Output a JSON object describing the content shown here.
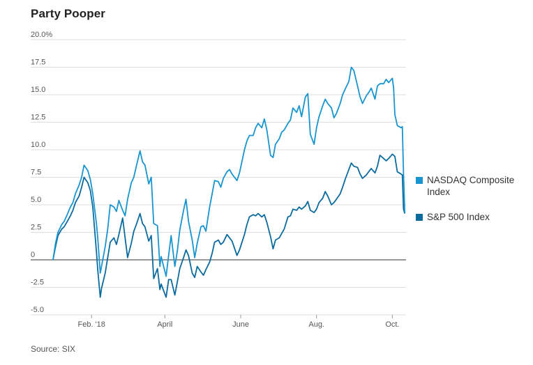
{
  "title": "Party Pooper",
  "source": "Source: SIX",
  "colors": {
    "nasdaq": "#1894cf",
    "sp500": "#0b6a9e",
    "grid": "#dddddd",
    "zero_line": "#333333"
  },
  "legend": [
    {
      "label": "NASDAQ Composite Index",
      "series": "nasdaq"
    },
    {
      "label": "S&P 500 Index",
      "series": "sp500"
    }
  ],
  "chart_data": {
    "type": "line",
    "title": "Party Pooper",
    "xlabel": "",
    "ylabel": "",
    "ylim": [
      -5,
      20
    ],
    "yticks": [
      -5,
      -2.5,
      0,
      2.5,
      5,
      7.5,
      10,
      12.5,
      15,
      17.5,
      20
    ],
    "ytick_labels": [
      "-5.0",
      "-2.5",
      "0",
      "2.5",
      "5.0",
      "7.5",
      "10.0",
      "12.5",
      "15.0",
      "17.5",
      "20.0%"
    ],
    "xlim": [
      "2018-01-01",
      "2018-10-12"
    ],
    "xticks": [
      {
        "label": "Feb. '18",
        "date": "2018-02-01"
      },
      {
        "label": "April",
        "date": "2018-04-01"
      },
      {
        "label": "June",
        "date": "2018-06-01"
      },
      {
        "label": "Aug.",
        "date": "2018-08-01"
      },
      {
        "label": "Oct.",
        "date": "2018-10-01"
      }
    ],
    "grid": true,
    "legend_position": "right",
    "series": [
      {
        "name": "NASDAQ Composite Index",
        "key": "nasdaq",
        "points": [
          [
            "2018-01-01",
            0
          ],
          [
            "2018-01-03",
            1.5
          ],
          [
            "2018-01-05",
            2.5
          ],
          [
            "2018-01-08",
            3.2
          ],
          [
            "2018-01-10",
            3.5
          ],
          [
            "2018-01-12",
            4.0
          ],
          [
            "2018-01-15",
            4.8
          ],
          [
            "2018-01-17",
            5.2
          ],
          [
            "2018-01-19",
            6.0
          ],
          [
            "2018-01-22",
            6.8
          ],
          [
            "2018-01-24",
            7.5
          ],
          [
            "2018-01-26",
            8.6
          ],
          [
            "2018-01-29",
            8.1
          ],
          [
            "2018-01-31",
            7.3
          ],
          [
            "2018-02-02",
            6.0
          ],
          [
            "2018-02-05",
            3.2
          ],
          [
            "2018-02-06",
            2.0
          ],
          [
            "2018-02-08",
            -1.2
          ],
          [
            "2018-02-09",
            -0.6
          ],
          [
            "2018-02-12",
            1.2
          ],
          [
            "2018-02-14",
            2.8
          ],
          [
            "2018-02-16",
            5.0
          ],
          [
            "2018-02-19",
            4.8
          ],
          [
            "2018-02-21",
            4.4
          ],
          [
            "2018-02-23",
            5.4
          ],
          [
            "2018-02-26",
            4.5
          ],
          [
            "2018-02-28",
            4.0
          ],
          [
            "2018-03-02",
            5.5
          ],
          [
            "2018-03-05",
            7.0
          ],
          [
            "2018-03-07",
            7.5
          ],
          [
            "2018-03-09",
            8.5
          ],
          [
            "2018-03-12",
            9.9
          ],
          [
            "2018-03-14",
            8.9
          ],
          [
            "2018-03-16",
            8.6
          ],
          [
            "2018-03-19",
            6.9
          ],
          [
            "2018-03-21",
            7.5
          ],
          [
            "2018-03-23",
            3.3
          ],
          [
            "2018-03-26",
            3.1
          ],
          [
            "2018-03-28",
            -0.6
          ],
          [
            "2018-03-29",
            0.3
          ],
          [
            "2018-04-02",
            -1.5
          ],
          [
            "2018-04-04",
            0.4
          ],
          [
            "2018-04-06",
            2.2
          ],
          [
            "2018-04-09",
            -0.6
          ],
          [
            "2018-04-11",
            0.8
          ],
          [
            "2018-04-13",
            2.7
          ],
          [
            "2018-04-16",
            4.5
          ],
          [
            "2018-04-18",
            5.5
          ],
          [
            "2018-04-20",
            3.5
          ],
          [
            "2018-04-23",
            1.8
          ],
          [
            "2018-04-25",
            0.2
          ],
          [
            "2018-04-27",
            1.5
          ],
          [
            "2018-04-30",
            3.0
          ],
          [
            "2018-05-02",
            3.1
          ],
          [
            "2018-05-04",
            2.6
          ],
          [
            "2018-05-07",
            4.8
          ],
          [
            "2018-05-09",
            6.0
          ],
          [
            "2018-05-11",
            7.2
          ],
          [
            "2018-05-14",
            7.1
          ],
          [
            "2018-05-16",
            6.6
          ],
          [
            "2018-05-18",
            7.4
          ],
          [
            "2018-05-21",
            8.0
          ],
          [
            "2018-05-23",
            8.2
          ],
          [
            "2018-05-25",
            7.8
          ],
          [
            "2018-05-29",
            7.2
          ],
          [
            "2018-05-31",
            7.9
          ],
          [
            "2018-06-04",
            10.0
          ],
          [
            "2018-06-06",
            10.8
          ],
          [
            "2018-06-08",
            11.3
          ],
          [
            "2018-06-11",
            11.3
          ],
          [
            "2018-06-13",
            12.0
          ],
          [
            "2018-06-15",
            12.4
          ],
          [
            "2018-06-18",
            12.0
          ],
          [
            "2018-06-20",
            12.8
          ],
          [
            "2018-06-22",
            11.8
          ],
          [
            "2018-06-25",
            9.5
          ],
          [
            "2018-06-27",
            9.3
          ],
          [
            "2018-06-29",
            10.5
          ],
          [
            "2018-07-02",
            11.0
          ],
          [
            "2018-07-04",
            11.6
          ],
          [
            "2018-07-06",
            11.8
          ],
          [
            "2018-07-09",
            12.4
          ],
          [
            "2018-07-11",
            12.7
          ],
          [
            "2018-07-13",
            13.8
          ],
          [
            "2018-07-16",
            13.4
          ],
          [
            "2018-07-18",
            14.0
          ],
          [
            "2018-07-20",
            13.0
          ],
          [
            "2018-07-23",
            14.8
          ],
          [
            "2018-07-25",
            15.1
          ],
          [
            "2018-07-27",
            11.4
          ],
          [
            "2018-07-30",
            10.5
          ],
          [
            "2018-08-01",
            12.0
          ],
          [
            "2018-08-03",
            13.0
          ],
          [
            "2018-08-06",
            14.0
          ],
          [
            "2018-08-08",
            14.6
          ],
          [
            "2018-08-10",
            14.2
          ],
          [
            "2018-08-13",
            13.8
          ],
          [
            "2018-08-15",
            12.9
          ],
          [
            "2018-08-17",
            13.3
          ],
          [
            "2018-08-20",
            14.2
          ],
          [
            "2018-08-22",
            15.0
          ],
          [
            "2018-08-24",
            15.5
          ],
          [
            "2018-08-27",
            16.2
          ],
          [
            "2018-08-29",
            17.5
          ],
          [
            "2018-08-31",
            17.2
          ],
          [
            "2018-09-03",
            15.8
          ],
          [
            "2018-09-05",
            14.8
          ],
          [
            "2018-09-07",
            14.2
          ],
          [
            "2018-09-10",
            14.9
          ],
          [
            "2018-09-12",
            15.2
          ],
          [
            "2018-09-14",
            15.6
          ],
          [
            "2018-09-17",
            14.6
          ],
          [
            "2018-09-19",
            15.8
          ],
          [
            "2018-09-21",
            16.0
          ],
          [
            "2018-09-24",
            16.0
          ],
          [
            "2018-09-26",
            16.4
          ],
          [
            "2018-09-28",
            16.1
          ],
          [
            "2018-10-01",
            16.5
          ],
          [
            "2018-10-02",
            15.6
          ],
          [
            "2018-10-03",
            13.2
          ],
          [
            "2018-10-05",
            12.2
          ],
          [
            "2018-10-08",
            12.0
          ],
          [
            "2018-10-09",
            12.1
          ],
          [
            "2018-10-10",
            7.8
          ],
          [
            "2018-10-11",
            4.3
          ]
        ]
      },
      {
        "name": "S&P 500 Index",
        "key": "sp500",
        "points": [
          [
            "2018-01-01",
            0
          ],
          [
            "2018-01-03",
            1.2
          ],
          [
            "2018-01-05",
            2.2
          ],
          [
            "2018-01-08",
            2.8
          ],
          [
            "2018-01-10",
            3.0
          ],
          [
            "2018-01-12",
            3.4
          ],
          [
            "2018-01-15",
            4.0
          ],
          [
            "2018-01-17",
            4.5
          ],
          [
            "2018-01-19",
            5.2
          ],
          [
            "2018-01-22",
            5.8
          ],
          [
            "2018-01-24",
            6.6
          ],
          [
            "2018-01-26",
            7.5
          ],
          [
            "2018-01-29",
            7.0
          ],
          [
            "2018-01-31",
            6.3
          ],
          [
            "2018-02-02",
            4.8
          ],
          [
            "2018-02-05",
            0.6
          ],
          [
            "2018-02-06",
            -0.9
          ],
          [
            "2018-02-08",
            -3.4
          ],
          [
            "2018-02-09",
            -2.6
          ],
          [
            "2018-02-12",
            -1.2
          ],
          [
            "2018-02-14",
            0.2
          ],
          [
            "2018-02-16",
            1.6
          ],
          [
            "2018-02-19",
            2.0
          ],
          [
            "2018-02-21",
            1.4
          ],
          [
            "2018-02-23",
            2.3
          ],
          [
            "2018-02-26",
            3.8
          ],
          [
            "2018-02-28",
            2.0
          ],
          [
            "2018-03-02",
            0.2
          ],
          [
            "2018-03-05",
            1.5
          ],
          [
            "2018-03-07",
            2.6
          ],
          [
            "2018-03-09",
            3.2
          ],
          [
            "2018-03-12",
            4.2
          ],
          [
            "2018-03-14",
            3.3
          ],
          [
            "2018-03-16",
            3.0
          ],
          [
            "2018-03-19",
            1.7
          ],
          [
            "2018-03-21",
            2.2
          ],
          [
            "2018-03-23",
            -1.7
          ],
          [
            "2018-03-26",
            -0.8
          ],
          [
            "2018-03-28",
            -2.7
          ],
          [
            "2018-03-29",
            -2.2
          ],
          [
            "2018-04-02",
            -3.4
          ],
          [
            "2018-04-04",
            -1.8
          ],
          [
            "2018-04-06",
            -1.8
          ],
          [
            "2018-04-09",
            -3.2
          ],
          [
            "2018-04-11",
            -2.0
          ],
          [
            "2018-04-13",
            -0.8
          ],
          [
            "2018-04-16",
            0.2
          ],
          [
            "2018-04-18",
            0.9
          ],
          [
            "2018-04-20",
            0.4
          ],
          [
            "2018-04-23",
            -1.2
          ],
          [
            "2018-04-25",
            -1.6
          ],
          [
            "2018-04-27",
            -0.6
          ],
          [
            "2018-04-30",
            -1.1
          ],
          [
            "2018-05-02",
            -1.4
          ],
          [
            "2018-05-04",
            -0.9
          ],
          [
            "2018-05-07",
            -0.2
          ],
          [
            "2018-05-09",
            0.6
          ],
          [
            "2018-05-11",
            1.6
          ],
          [
            "2018-05-14",
            1.8
          ],
          [
            "2018-05-16",
            1.4
          ],
          [
            "2018-05-18",
            1.6
          ],
          [
            "2018-05-21",
            2.3
          ],
          [
            "2018-05-23",
            2.0
          ],
          [
            "2018-05-25",
            1.7
          ],
          [
            "2018-05-29",
            0.4
          ],
          [
            "2018-05-31",
            0.9
          ],
          [
            "2018-06-04",
            2.3
          ],
          [
            "2018-06-06",
            3.2
          ],
          [
            "2018-06-08",
            3.9
          ],
          [
            "2018-06-11",
            4.1
          ],
          [
            "2018-06-13",
            4.0
          ],
          [
            "2018-06-15",
            4.2
          ],
          [
            "2018-06-18",
            3.9
          ],
          [
            "2018-06-20",
            4.1
          ],
          [
            "2018-06-22",
            3.4
          ],
          [
            "2018-06-25",
            2.1
          ],
          [
            "2018-06-27",
            1.0
          ],
          [
            "2018-06-29",
            1.8
          ],
          [
            "2018-07-02",
            2.0
          ],
          [
            "2018-07-04",
            2.4
          ],
          [
            "2018-07-06",
            2.8
          ],
          [
            "2018-07-09",
            3.9
          ],
          [
            "2018-07-11",
            4.0
          ],
          [
            "2018-07-13",
            4.6
          ],
          [
            "2018-07-16",
            4.5
          ],
          [
            "2018-07-18",
            4.8
          ],
          [
            "2018-07-20",
            4.6
          ],
          [
            "2018-07-23",
            4.9
          ],
          [
            "2018-07-25",
            5.3
          ],
          [
            "2018-07-27",
            4.5
          ],
          [
            "2018-07-30",
            4.3
          ],
          [
            "2018-08-01",
            4.6
          ],
          [
            "2018-08-03",
            5.2
          ],
          [
            "2018-08-06",
            5.6
          ],
          [
            "2018-08-08",
            6.2
          ],
          [
            "2018-08-10",
            5.8
          ],
          [
            "2018-08-13",
            5.0
          ],
          [
            "2018-08-15",
            5.2
          ],
          [
            "2018-08-17",
            5.5
          ],
          [
            "2018-08-20",
            6.0
          ],
          [
            "2018-08-22",
            6.6
          ],
          [
            "2018-08-24",
            7.3
          ],
          [
            "2018-08-27",
            8.2
          ],
          [
            "2018-08-29",
            8.8
          ],
          [
            "2018-08-31",
            8.5
          ],
          [
            "2018-09-03",
            8.4
          ],
          [
            "2018-09-05",
            7.8
          ],
          [
            "2018-09-07",
            7.4
          ],
          [
            "2018-09-10",
            7.7
          ],
          [
            "2018-09-12",
            8.0
          ],
          [
            "2018-09-14",
            8.3
          ],
          [
            "2018-09-17",
            7.9
          ],
          [
            "2018-09-19",
            8.5
          ],
          [
            "2018-09-21",
            9.5
          ],
          [
            "2018-09-24",
            9.2
          ],
          [
            "2018-09-26",
            9.0
          ],
          [
            "2018-09-28",
            9.2
          ],
          [
            "2018-10-01",
            9.6
          ],
          [
            "2018-10-02",
            9.5
          ],
          [
            "2018-10-03",
            9.4
          ],
          [
            "2018-10-05",
            8.0
          ],
          [
            "2018-10-08",
            7.8
          ],
          [
            "2018-10-09",
            7.7
          ],
          [
            "2018-10-10",
            4.6
          ],
          [
            "2018-10-11",
            4.2
          ]
        ]
      }
    ]
  }
}
